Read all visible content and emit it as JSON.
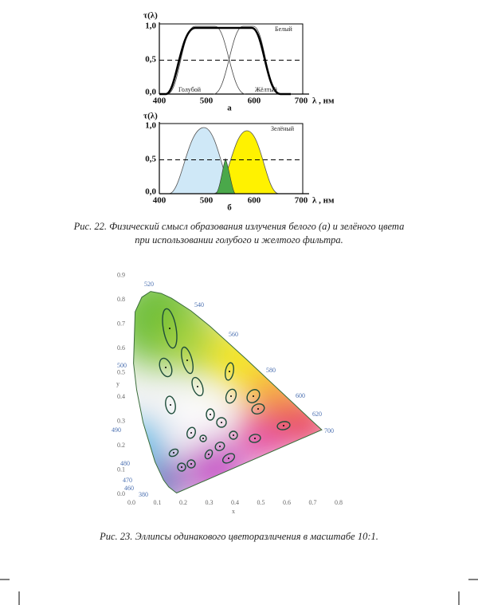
{
  "figure22": {
    "panel_a": {
      "y_label": "τ(λ)",
      "x_label": "λ , нм",
      "yticks": [
        "1,0",
        "0,5",
        "0,0"
      ],
      "xticks": [
        "400",
        "500",
        "600",
        "700"
      ],
      "legend": "Белый",
      "curve_labels": [
        "Голубой",
        "Жёлтый"
      ],
      "panel_label": "а"
    },
    "panel_b": {
      "y_label": "τ(λ)",
      "x_label": "λ , нм",
      "yticks": [
        "1,0",
        "0,5",
        "0,0"
      ],
      "xticks": [
        "400",
        "500",
        "600",
        "700"
      ],
      "legend": "Зелёный",
      "panel_label": "б"
    },
    "caption": "Рис. 22. Физический смысл образования излучения белого (а) и зелёного цвета при использовании голубого и желтого фильтра."
  },
  "figure23": {
    "x_label": "x",
    "y_label": "y",
    "xticks": [
      "0.0",
      "0.1",
      "0.2",
      "0.3",
      "0.4",
      "0.5",
      "0.6",
      "0.7",
      "0.8"
    ],
    "yticks": [
      "0.0",
      "0.1",
      "0.2",
      "0.3",
      "0.4",
      "0.5",
      "0.6",
      "0.7",
      "0.8",
      "0.9"
    ],
    "wavelength_labels": [
      "520",
      "540",
      "560",
      "580",
      "600",
      "620",
      "700",
      "500",
      "490",
      "480",
      "470",
      "460",
      "380"
    ],
    "caption": "Рис. 23. Эллипсы одинакового цветоразличения в масштабе 10:1."
  }
}
